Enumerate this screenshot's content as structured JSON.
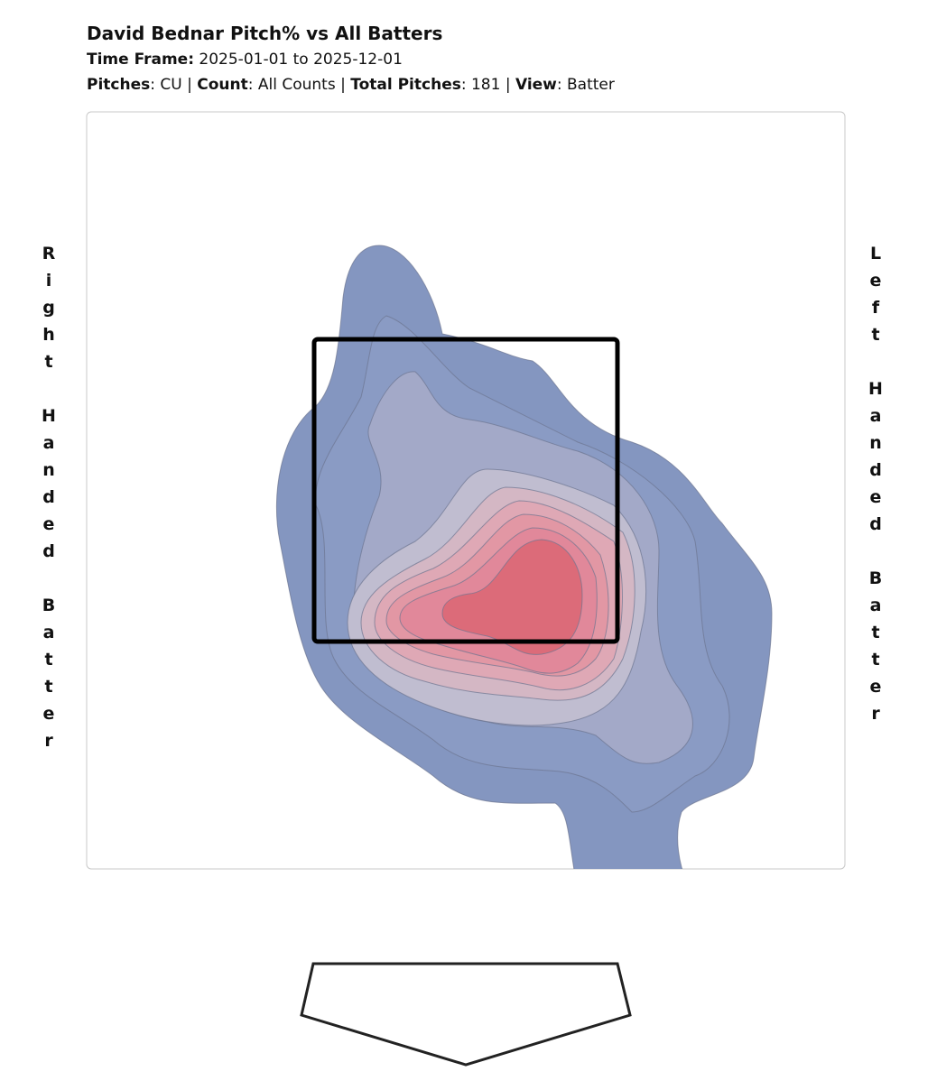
{
  "header": {
    "title": "David Bednar Pitch% vs All Batters",
    "lines": [
      [
        {
          "text": "Time Frame:",
          "bold": true
        },
        {
          "text": " 2025-01-01 to 2025-12-01",
          "bold": false
        }
      ],
      [
        {
          "text": "Pitches",
          "bold": true
        },
        {
          "text": ": CU | ",
          "bold": false
        },
        {
          "text": "Count",
          "bold": true
        },
        {
          "text": ": All Counts | ",
          "bold": false
        },
        {
          "text": "Total Pitches",
          "bold": true
        },
        {
          "text": ": 181 | ",
          "bold": false
        },
        {
          "text": "View",
          "bold": true
        },
        {
          "text": ": Batter",
          "bold": false
        }
      ]
    ]
  },
  "side_labels": {
    "left": "Right Handed Batter",
    "right": "Left Handed Batter"
  }
}
